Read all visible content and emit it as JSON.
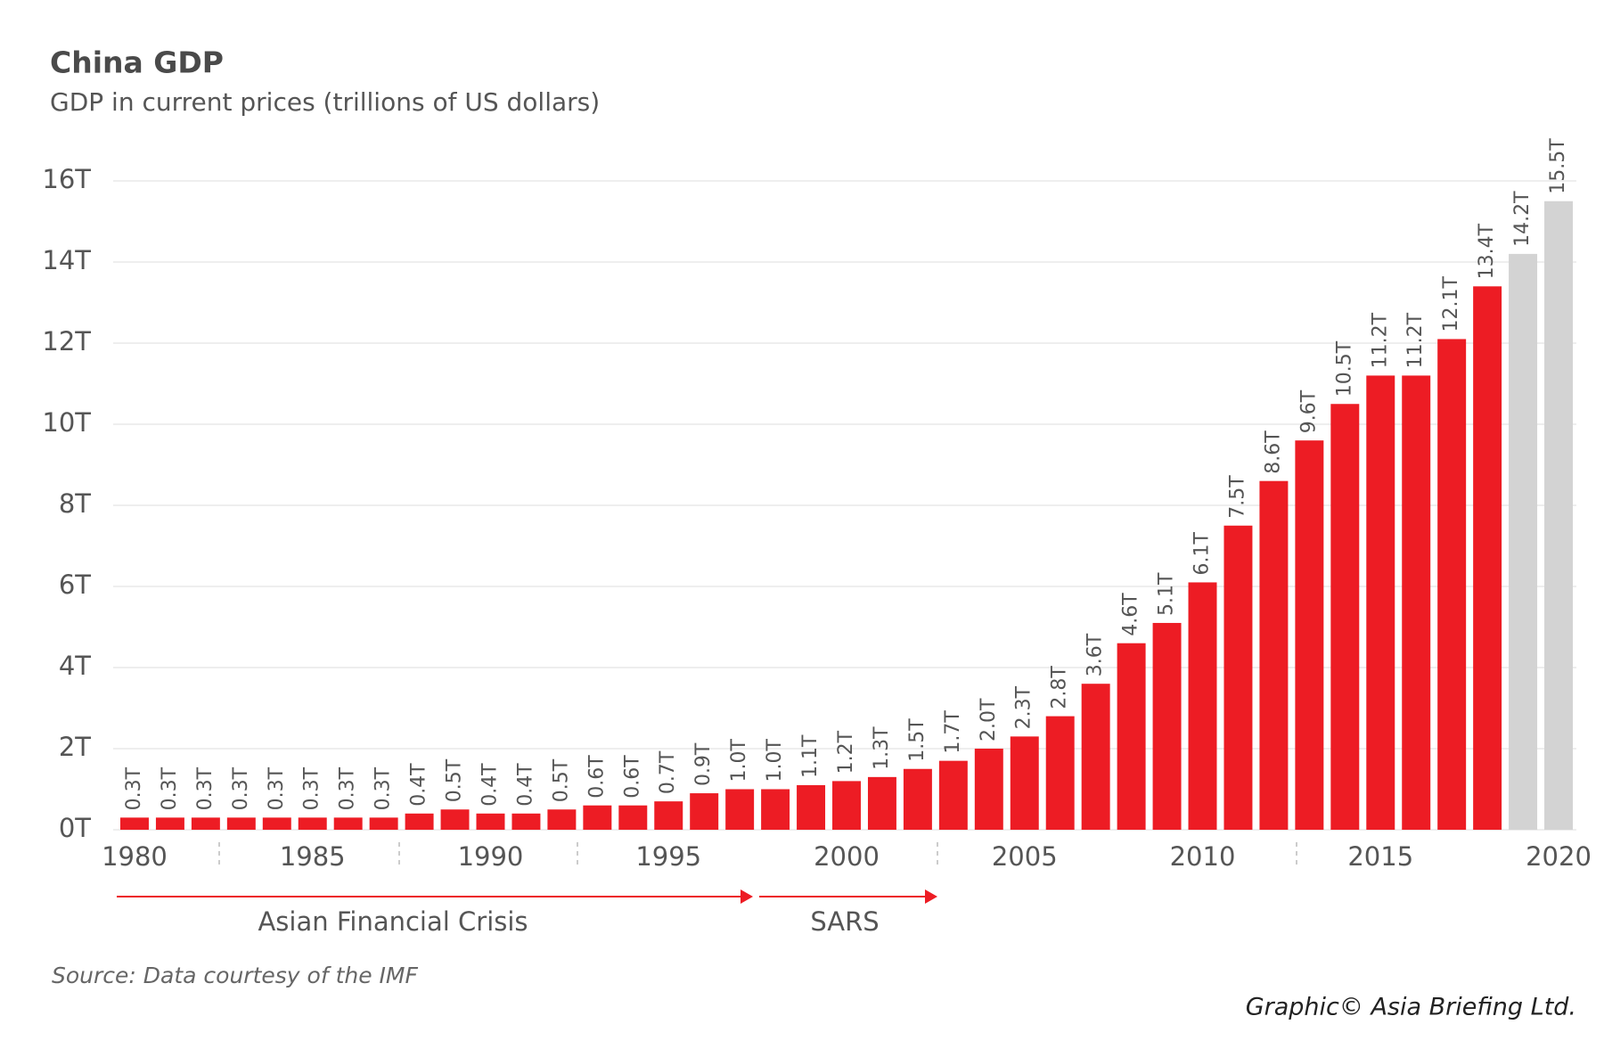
{
  "chart_data": {
    "type": "bar",
    "title": "China GDP",
    "subtitle": "GDP in current prices (trillions of US dollars)",
    "categories": [
      "1980",
      null,
      null,
      null,
      null,
      "1985",
      null,
      null,
      null,
      null,
      "1990",
      null,
      null,
      null,
      null,
      "1995",
      null,
      null,
      null,
      null,
      "2000",
      null,
      null,
      null,
      null,
      "2005",
      null,
      null,
      null,
      null,
      "2010",
      null,
      null,
      null,
      null,
      "2015",
      null,
      null,
      null,
      null,
      "2020"
    ],
    "values": [
      0.3,
      0.3,
      0.3,
      0.3,
      0.3,
      0.3,
      0.3,
      0.3,
      0.4,
      0.5,
      0.4,
      0.4,
      0.5,
      0.6,
      0.6,
      0.7,
      0.9,
      1.0,
      1.0,
      1.1,
      1.2,
      1.3,
      1.5,
      1.7,
      2.0,
      2.3,
      2.8,
      3.6,
      4.6,
      5.1,
      6.1,
      7.5,
      8.6,
      9.6,
      10.5,
      11.2,
      11.2,
      12.1,
      13.4,
      14.2,
      15.5
    ],
    "value_labels": [
      "0.3T",
      "0.3T",
      "0.3T",
      "0.3T",
      "0.3T",
      "0.3T",
      "0.3T",
      "0.3T",
      "0.4T",
      "0.5T",
      "0.4T",
      "0.4T",
      "0.5T",
      "0.6T",
      "0.6T",
      "0.7T",
      "0.9T",
      "1.0T",
      "1.0T",
      "1.1T",
      "1.2T",
      "1.3T",
      "1.5T",
      "1.7T",
      "2.0T",
      "2.3T",
      "2.8T",
      "3.6T",
      "4.6T",
      "5.1T",
      "6.1T",
      "7.5T",
      "8.6T",
      "9.6T",
      "10.5T",
      "11.2T",
      "11.2T",
      "12.1T",
      "13.4T",
      "14.2T",
      "15.5T"
    ],
    "colors": [
      "#ed1c24",
      "#ed1c24",
      "#ed1c24",
      "#ed1c24",
      "#ed1c24",
      "#ed1c24",
      "#ed1c24",
      "#ed1c24",
      "#ed1c24",
      "#ed1c24",
      "#ed1c24",
      "#ed1c24",
      "#ed1c24",
      "#ed1c24",
      "#ed1c24",
      "#ed1c24",
      "#ed1c24",
      "#ed1c24",
      "#ed1c24",
      "#ed1c24",
      "#ed1c24",
      "#ed1c24",
      "#ed1c24",
      "#ed1c24",
      "#ed1c24",
      "#ed1c24",
      "#ed1c24",
      "#ed1c24",
      "#ed1c24",
      "#ed1c24",
      "#ed1c24",
      "#ed1c24",
      "#ed1c24",
      "#ed1c24",
      "#ed1c24",
      "#ed1c24",
      "#ed1c24",
      "#ed1c24",
      "#ed1c24",
      "#d3d3d3",
      "#d3d3d3"
    ],
    "ylim": [
      0,
      16
    ],
    "yticks": [
      {
        "value": 0,
        "label": "0T"
      },
      {
        "value": 2,
        "label": "2T"
      },
      {
        "value": 4,
        "label": "4T"
      },
      {
        "value": 6,
        "label": "6T"
      },
      {
        "value": 8,
        "label": "8T"
      },
      {
        "value": 10,
        "label": "10T"
      },
      {
        "value": 12,
        "label": "12T"
      },
      {
        "value": 14,
        "label": "14T"
      },
      {
        "value": 16,
        "label": "16T"
      }
    ],
    "grid": true,
    "annotations": [
      "Asian Financial Crisis",
      "SARS"
    ],
    "source": "Source: Data courtesy of the IMF",
    "credit": "Graphic© Asia Briefing Ltd."
  }
}
